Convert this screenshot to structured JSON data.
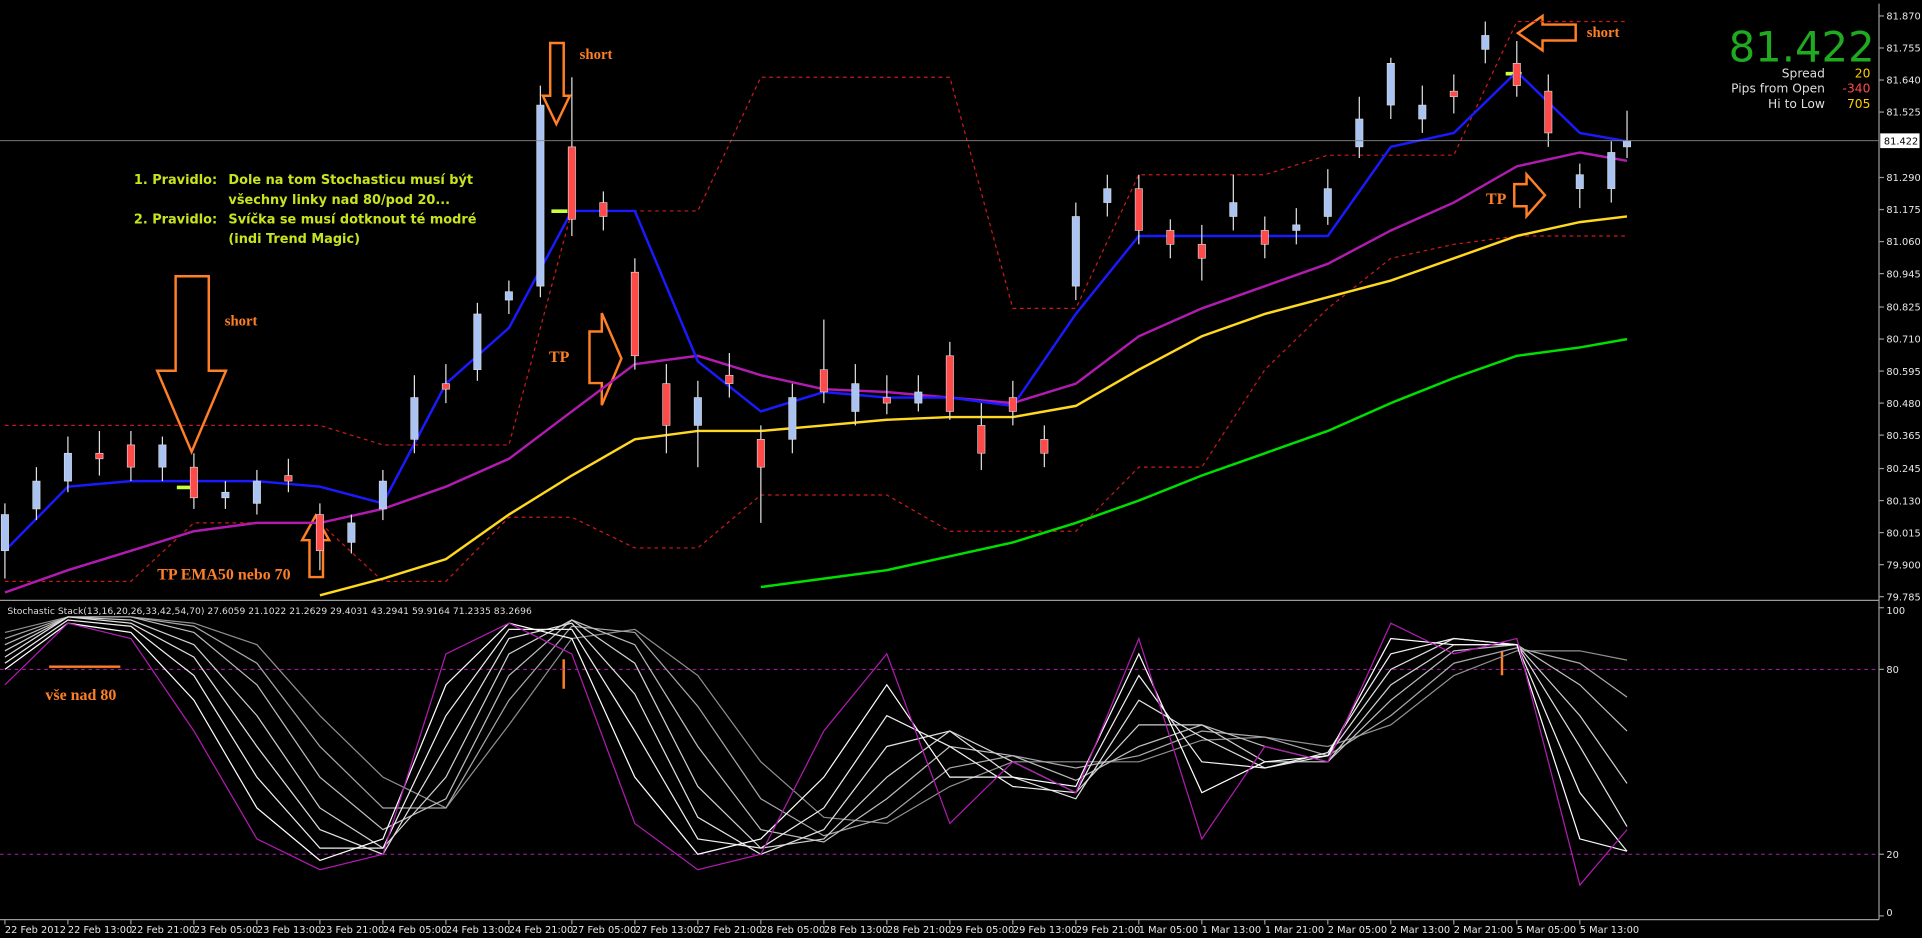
{
  "chart_data": [
    {
      "type": "candlestick",
      "xlim": [
        0,
        238
      ],
      "ylim": [
        79.785,
        81.87
      ],
      "yticks": [
        {
          "value": 81.87,
          "label": "81.870"
        },
        81.755,
        {
          "value": 81.64,
          "label": "81.640"
        },
        81.525,
        {
          "value": 81.29,
          "label": "81.290"
        },
        81.175,
        {
          "value": 81.06,
          "label": "81.060"
        },
        80.945,
        80.825,
        {
          "value": 80.71,
          "label": "80.710"
        },
        80.595,
        {
          "value": 80.48,
          "label": "80.480"
        },
        80.365,
        80.245,
        {
          "value": 80.13,
          "label": "80.130"
        },
        80.015,
        {
          "value": 79.9,
          "label": "79.900"
        },
        79.785
      ],
      "xticks": [
        {
          "value": 0,
          "label": "22 Feb 2012"
        },
        {
          "value": 8,
          "label": "22 Feb 13:00"
        },
        {
          "value": 16,
          "label": "22 Feb 21:00"
        },
        {
          "value": 24,
          "label": "23 Feb 05:00"
        },
        {
          "value": 32,
          "label": "23 Feb 13:00"
        },
        {
          "value": 40,
          "label": "23 Feb 21:00"
        },
        {
          "value": 48,
          "label": "24 Feb 05:00"
        },
        {
          "value": 56,
          "label": "24 Feb 13:00"
        },
        {
          "value": 64,
          "label": "24 Feb 21:00"
        },
        {
          "value": 72,
          "label": "27 Feb 05:00"
        },
        {
          "value": 80,
          "label": "27 Feb 13:00"
        },
        {
          "value": 88,
          "label": "27 Feb 21:00"
        },
        {
          "value": 96,
          "label": "28 Feb 05:00"
        },
        {
          "value": 104,
          "label": "28 Feb 13:00"
        },
        {
          "value": 112,
          "label": "28 Feb 21:00"
        },
        {
          "value": 120,
          "label": "29 Feb 05:00"
        },
        {
          "value": 128,
          "label": "29 Feb 13:00"
        },
        {
          "value": 136,
          "label": "29 Feb 21:00"
        },
        {
          "value": 144,
          "label": "1 Mar 05:00"
        },
        {
          "value": 152,
          "label": "1 Mar 13:00"
        },
        {
          "value": 160,
          "label": "1 Mar 21:00"
        },
        {
          "value": 168,
          "label": "2 Mar 05:00"
        },
        {
          "value": 176,
          "label": "2 Mar 13:00"
        },
        {
          "value": 184,
          "label": "2 Mar 21:00"
        },
        {
          "value": 192,
          "label": "5 Mar 05:00"
        },
        {
          "value": 200,
          "label": "5 Mar 13:00"
        }
      ],
      "up_color": "#a9c4f2",
      "down_color": "#ff4a4a",
      "x": [
        0,
        4,
        8,
        12,
        16,
        20,
        24,
        28,
        32,
        36,
        40,
        44,
        48,
        52,
        56,
        60,
        64,
        68,
        72,
        76,
        80,
        84,
        88,
        92,
        96,
        100,
        104,
        108,
        112,
        116,
        120,
        124,
        128,
        132,
        136,
        140,
        144,
        148,
        152,
        156,
        160,
        164,
        168,
        172,
        176,
        180,
        184,
        188,
        192,
        196,
        200,
        204,
        206
      ],
      "open": [
        79.95,
        80.1,
        80.2,
        80.3,
        80.33,
        80.25,
        80.25,
        80.14,
        80.12,
        80.22,
        80.08,
        79.98,
        80.1,
        80.35,
        80.55,
        80.6,
        80.85,
        80.9,
        81.4,
        81.2,
        80.95,
        80.55,
        80.4,
        80.58,
        80.35,
        80.35,
        80.6,
        80.45,
        80.5,
        80.48,
        80.65,
        80.4,
        80.5,
        80.35,
        80.9,
        81.2,
        81.25,
        81.1,
        81.05,
        81.15,
        81.1,
        81.1,
        81.15,
        81.4,
        81.55,
        81.5,
        81.6,
        81.75,
        81.7,
        81.6,
        81.25,
        81.25,
        81.4
      ],
      "high": [
        80.12,
        80.25,
        80.36,
        80.38,
        80.38,
        80.36,
        80.3,
        80.2,
        80.24,
        80.28,
        80.12,
        80.08,
        80.24,
        80.58,
        80.62,
        80.84,
        80.92,
        81.62,
        81.65,
        81.24,
        81.0,
        80.62,
        80.56,
        80.66,
        80.4,
        80.55,
        80.78,
        80.62,
        80.58,
        80.58,
        80.7,
        80.48,
        80.56,
        80.4,
        81.2,
        81.3,
        81.3,
        81.14,
        81.12,
        81.3,
        81.15,
        81.18,
        81.32,
        81.58,
        81.72,
        81.62,
        81.66,
        81.85,
        81.78,
        81.66,
        81.34,
        81.42,
        81.53
      ],
      "low": [
        79.85,
        80.06,
        80.16,
        80.22,
        80.2,
        80.2,
        80.1,
        80.1,
        80.08,
        80.16,
        79.88,
        79.94,
        80.06,
        80.3,
        80.48,
        80.56,
        80.8,
        80.86,
        81.08,
        81.1,
        80.6,
        80.3,
        80.25,
        80.5,
        80.05,
        80.3,
        80.48,
        80.4,
        80.44,
        80.45,
        80.42,
        80.24,
        80.4,
        80.25,
        80.85,
        81.15,
        81.05,
        81.0,
        80.92,
        81.1,
        81.0,
        81.05,
        81.12,
        81.36,
        81.5,
        81.45,
        81.52,
        81.7,
        81.58,
        81.4,
        81.18,
        81.2,
        81.36
      ],
      "close": [
        80.08,
        80.2,
        80.3,
        80.28,
        80.25,
        80.33,
        80.14,
        80.16,
        80.2,
        80.2,
        79.95,
        80.05,
        80.2,
        80.5,
        80.53,
        80.8,
        80.88,
        81.55,
        81.14,
        81.15,
        80.65,
        80.4,
        80.5,
        80.55,
        80.25,
        80.5,
        80.52,
        80.55,
        80.48,
        80.52,
        80.45,
        80.3,
        80.45,
        80.3,
        81.15,
        81.25,
        81.1,
        81.05,
        81.0,
        81.2,
        81.05,
        81.12,
        81.25,
        81.5,
        81.7,
        81.55,
        81.58,
        81.8,
        81.62,
        81.45,
        81.3,
        81.38,
        81.422
      ],
      "overlays": {
        "x": [
          0,
          8,
          16,
          24,
          32,
          40,
          48,
          56,
          64,
          72,
          80,
          88,
          96,
          104,
          112,
          120,
          128,
          136,
          144,
          152,
          160,
          168,
          176,
          184,
          192,
          200,
          206
        ],
        "series": [
          {
            "color": "#cc1a1a",
            "dash": true,
            "values": [
              80.4,
              80.4,
              80.4,
              80.4,
              80.4,
              80.4,
              80.33,
              80.33,
              80.33,
              81.17,
              81.17,
              81.17,
              81.65,
              81.65,
              81.65,
              81.65,
              80.82,
              80.82,
              81.3,
              81.3,
              81.3,
              81.37,
              81.37,
              81.37,
              81.85,
              81.85,
              81.85
            ]
          },
          {
            "color": "#cc1a1a",
            "dash": true,
            "values": [
              79.84,
              79.84,
              79.84,
              80.05,
              80.05,
              80.05,
              79.84,
              79.84,
              80.07,
              80.07,
              79.96,
              79.96,
              80.15,
              80.15,
              80.15,
              80.02,
              80.02,
              80.02,
              80.25,
              80.25,
              80.6,
              80.82,
              81.0,
              81.05,
              81.08,
              81.08,
              81.08
            ]
          },
          {
            "color": "#00e000",
            "values": [
              null,
              null,
              null,
              null,
              null,
              null,
              null,
              null,
              null,
              null,
              null,
              null,
              79.82,
              79.85,
              79.88,
              79.93,
              79.98,
              80.05,
              80.13,
              80.22,
              80.3,
              80.38,
              80.48,
              80.57,
              80.65,
              80.68,
              80.71
            ]
          },
          {
            "color": "#ffd820",
            "values": [
              null,
              null,
              null,
              null,
              null,
              79.79,
              79.85,
              79.92,
              80.08,
              80.22,
              80.35,
              80.38,
              80.38,
              80.4,
              80.42,
              80.43,
              80.43,
              80.47,
              80.6,
              80.72,
              80.8,
              80.86,
              80.92,
              81.0,
              81.08,
              81.13,
              81.15
            ]
          },
          {
            "color": "#b01cb0",
            "values": [
              79.8,
              79.88,
              79.95,
              80.02,
              80.05,
              80.05,
              80.1,
              80.18,
              80.28,
              80.45,
              80.62,
              80.65,
              80.58,
              80.53,
              80.52,
              80.5,
              80.48,
              80.55,
              80.72,
              80.82,
              80.9,
              80.98,
              81.1,
              81.2,
              81.33,
              81.38,
              81.35
            ]
          },
          {
            "color": "#1a1aff",
            "values": [
              79.95,
              80.18,
              80.2,
              80.2,
              80.2,
              80.18,
              80.12,
              80.55,
              80.75,
              81.17,
              81.17,
              80.63,
              80.45,
              80.52,
              80.5,
              80.5,
              80.47,
              80.8,
              81.08,
              81.08,
              81.08,
              81.08,
              81.4,
              81.45,
              81.67,
              81.45,
              81.42
            ]
          }
        ]
      },
      "annotations": {
        "rules": [
          "1. Pravidlo:",
          "Dole na tom Stochasticu musí být",
          "všechny linky nad 80/pod 20...",
          "2. Pravidlo:",
          "Svíčka se musí dotknout té modré",
          "(indi Trend Magic)"
        ],
        "labels": [
          "short",
          "short",
          "short",
          "TP",
          "TP",
          "TP EMA50 nebo 70"
        ]
      },
      "info": [
        {
          "label": "Spread",
          "value": 20
        },
        {
          "label": "Pips from Open",
          "value": -340
        },
        {
          "label": "Hi to Low",
          "value": 705
        }
      ]
    },
    {
      "type": "line",
      "title": "Stochastic Stack(13,16,20,26,33,42,54,70) 27.6059 21.1022 21.2629 29.4031 43.2941 59.9164 71.2335 83.2696",
      "annotation": "vše nad 80",
      "ylim": [
        0,
        100
      ],
      "yticks": [
        0,
        20,
        80,
        100
      ],
      "x": [
        0,
        8,
        16,
        24,
        32,
        40,
        48,
        56,
        64,
        72,
        80,
        88,
        96,
        104,
        112,
        120,
        128,
        136,
        144,
        152,
        160,
        168,
        176,
        184,
        192,
        200,
        206
      ],
      "series": [
        {
          "color": "#b01cb0",
          "values": [
            75,
            95,
            90,
            60,
            25,
            15,
            20,
            85,
            95,
            85,
            30,
            15,
            20,
            60,
            85,
            30,
            50,
            40,
            90,
            25,
            55,
            50,
            95,
            85,
            90,
            10,
            28
          ]
        },
        {
          "color": "#ffffff",
          "values": [
            80,
            95,
            92,
            70,
            35,
            18,
            25,
            75,
            95,
            90,
            45,
            20,
            25,
            45,
            75,
            45,
            45,
            42,
            85,
            40,
            50,
            52,
            90,
            88,
            88,
            25,
            21
          ]
        },
        {
          "color": "#f0f0f0",
          "values": [
            82,
            96,
            94,
            78,
            45,
            22,
            22,
            65,
            93,
            93,
            60,
            25,
            22,
            35,
            65,
            55,
            42,
            40,
            78,
            50,
            48,
            53,
            85,
            90,
            88,
            40,
            21
          ]
        },
        {
          "color": "#e0e0e0",
          "values": [
            84,
            97,
            95,
            84,
            55,
            28,
            20,
            55,
            90,
            95,
            72,
            32,
            20,
            28,
            55,
            60,
            45,
            38,
            70,
            58,
            48,
            52,
            80,
            90,
            88,
            55,
            29
          ]
        },
        {
          "color": "#d0d0d0",
          "values": [
            86,
            97,
            96,
            88,
            65,
            35,
            22,
            45,
            85,
            96,
            82,
            42,
            22,
            25,
            45,
            60,
            50,
            40,
            62,
            62,
            50,
            50,
            75,
            88,
            88,
            65,
            43
          ]
        },
        {
          "color": "#bdbdbd",
          "values": [
            88,
            97,
            97,
            92,
            75,
            45,
            28,
            38,
            78,
            96,
            88,
            55,
            28,
            24,
            38,
            55,
            52,
            44,
            55,
            62,
            55,
            50,
            70,
            86,
            88,
            75,
            60
          ]
        },
        {
          "color": "#a8a8a8",
          "values": [
            90,
            97,
            97,
            94,
            82,
            55,
            35,
            35,
            70,
            94,
            92,
            68,
            38,
            26,
            32,
            48,
            52,
            48,
            52,
            60,
            58,
            52,
            65,
            82,
            87,
            82,
            71
          ]
        },
        {
          "color": "#909090",
          "values": [
            92,
            97,
            97,
            95,
            88,
            65,
            45,
            35,
            62,
            90,
            93,
            78,
            50,
            32,
            30,
            42,
            50,
            50,
            50,
            57,
            58,
            55,
            62,
            78,
            86,
            86,
            83
          ]
        }
      ]
    }
  ]
}
